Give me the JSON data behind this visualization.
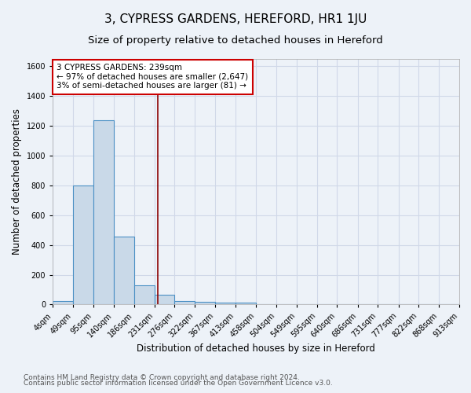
{
  "title": "3, CYPRESS GARDENS, HEREFORD, HR1 1JU",
  "subtitle": "Size of property relative to detached houses in Hereford",
  "xlabel": "Distribution of detached houses by size in Hereford",
  "ylabel": "Number of detached properties",
  "footnote1": "Contains HM Land Registry data © Crown copyright and database right 2024.",
  "footnote2": "Contains public sector information licensed under the Open Government Licence v3.0.",
  "annotation_line1": "3 CYPRESS GARDENS: 239sqm",
  "annotation_line2": "← 97% of detached houses are smaller (2,647)",
  "annotation_line3": "3% of semi-detached houses are larger (81) →",
  "property_size": 239,
  "bin_edges": [
    4,
    49,
    95,
    140,
    186,
    231,
    276,
    322,
    367,
    413,
    458,
    504,
    549,
    595,
    640,
    686,
    731,
    777,
    822,
    868,
    913
  ],
  "bar_heights": [
    25,
    800,
    1240,
    455,
    130,
    65,
    25,
    20,
    15,
    15,
    0,
    0,
    0,
    0,
    0,
    0,
    0,
    0,
    0,
    0
  ],
  "bar_color": "#c9d9e8",
  "bar_edge_color": "#4a90c4",
  "bar_linewidth": 0.8,
  "vline_color": "#8b0000",
  "vline_linewidth": 1.2,
  "annotation_box_edge": "#cc0000",
  "annotation_box_face": "white",
  "ylim": [
    0,
    1650
  ],
  "yticks": [
    0,
    200,
    400,
    600,
    800,
    1000,
    1200,
    1400,
    1600
  ],
  "background_color": "#edf2f8",
  "plot_bg_color": "#edf2f8",
  "grid_color": "#d0d8e8",
  "title_fontsize": 11,
  "subtitle_fontsize": 9.5,
  "xlabel_fontsize": 8.5,
  "ylabel_fontsize": 8.5,
  "tick_fontsize": 7,
  "annotation_fontsize": 7.5,
  "footnote_fontsize": 6.5
}
